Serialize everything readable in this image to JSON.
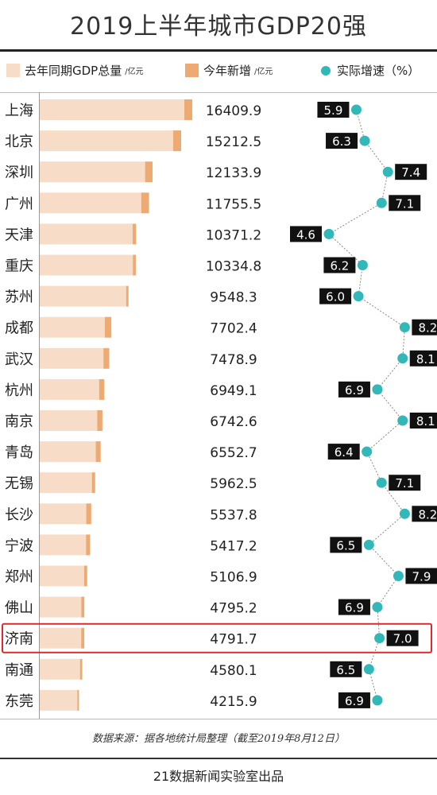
{
  "title": "2019上半年城市GDP20强",
  "legend": {
    "prev": "去年同期GDP总量",
    "prev_unit": "/亿元",
    "inc": "今年新增",
    "inc_unit": "/亿元",
    "growth": "实际增速（%）"
  },
  "colors": {
    "prev_bar": "#f7ddc8",
    "increase_bar": "#eeaa73",
    "growth_dot": "#33b8ba",
    "label_bg": "#111111",
    "highlight": "#e0282c"
  },
  "highlight_city": "济南",
  "chart_data": {
    "type": "bar",
    "categories": [
      "上海",
      "北京",
      "深圳",
      "广州",
      "天津",
      "重庆",
      "苏州",
      "成都",
      "武汉",
      "杭州",
      "南京",
      "青岛",
      "无锡",
      "长沙",
      "宁波",
      "郑州",
      "佛山",
      "济南",
      "南通",
      "东莞"
    ],
    "gdp_total": [
      16409.9,
      15212.5,
      12133.9,
      11755.5,
      10371.2,
      10334.8,
      9548.3,
      7702.4,
      7478.9,
      6949.1,
      6742.6,
      6552.7,
      5962.5,
      5537.8,
      5417.2,
      5106.9,
      4795.2,
      4791.7,
      4580.1,
      4215.9
    ],
    "growth_rate": [
      5.9,
      6.3,
      7.4,
      7.1,
      4.6,
      6.2,
      6.0,
      8.2,
      8.1,
      6.9,
      8.1,
      6.4,
      7.1,
      8.2,
      6.5,
      7.9,
      6.9,
      7.0,
      6.5,
      6.9
    ],
    "growth_labels": [
      "5.9",
      "6.3",
      "7.4",
      "7.1",
      "4.6",
      "6.2",
      "6.0",
      "8.2",
      "8.1",
      "6.9",
      "8.1",
      "6.4",
      "7.1",
      "8.2",
      "6.5",
      "7.9",
      "6.9",
      "7.0",
      "6.5",
      "6.9"
    ],
    "series": [
      {
        "name": "去年同期GDP总量",
        "values": [
          15558,
          14347,
          11335,
          10919,
          9993,
          10013,
          9300,
          7000,
          6855,
          6390,
          6180,
          6030,
          5612,
          5005,
          4980,
          4780,
          4470,
          4460,
          4335,
          4040
        ]
      },
      {
        "name": "今年新增",
        "values": [
          852,
          866,
          799,
          837,
          378,
          322,
          248,
          702,
          624,
          559,
          563,
          523,
          351,
          533,
          437,
          327,
          325,
          332,
          245,
          176
        ]
      }
    ],
    "growth_range": [
      4.6,
      8.2
    ]
  },
  "source": "数据来源：据各地统计局整理（截至2019年8月12日）",
  "credit": "21数据新闻实验室出品"
}
